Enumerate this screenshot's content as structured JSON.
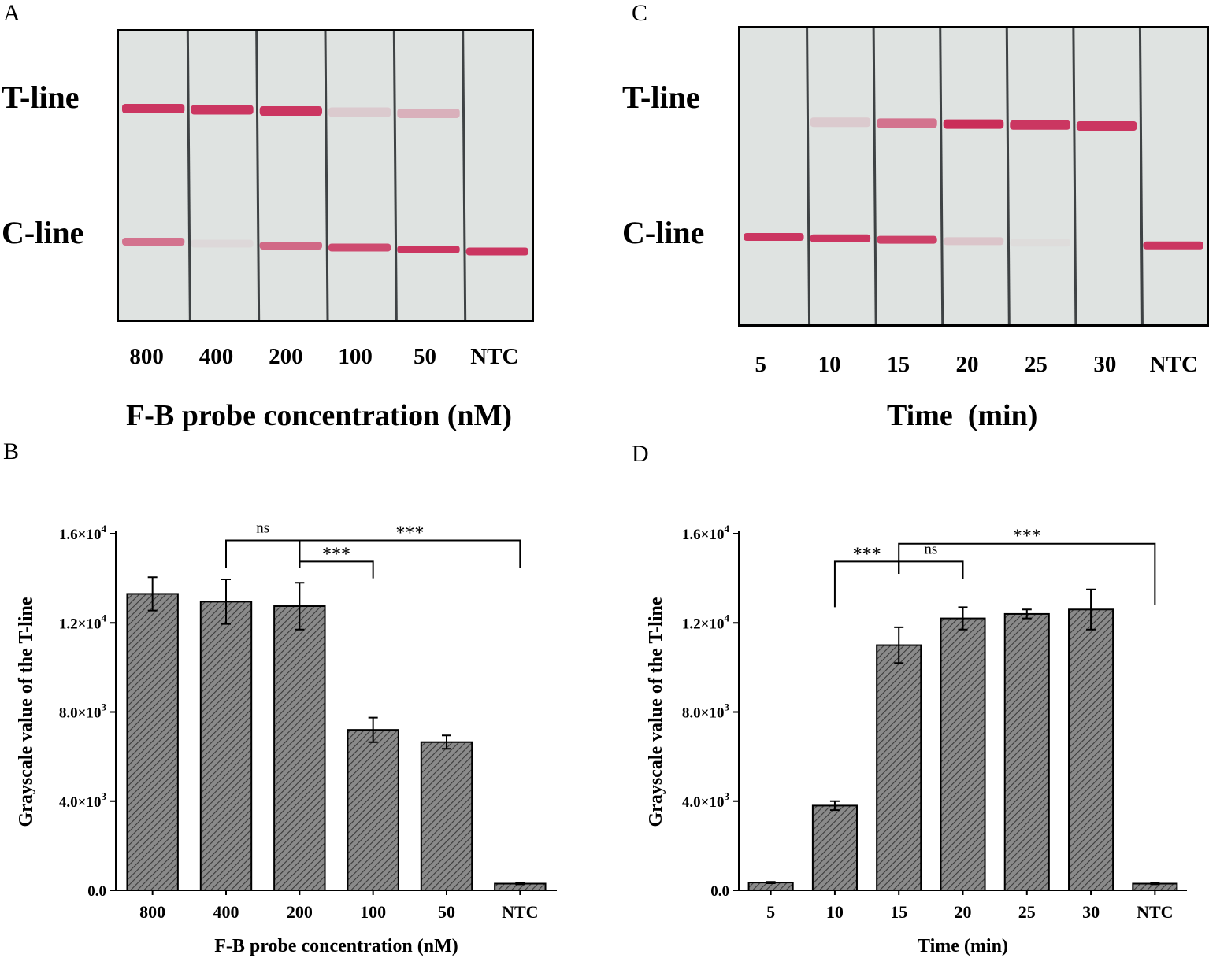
{
  "panels": {
    "A": {
      "letter": "A",
      "t_line_label": "T-line",
      "c_line_label": "C-line",
      "lanes": [
        {
          "label": "800",
          "t_intensity": 0.85,
          "c_intensity": 0.55
        },
        {
          "label": "400",
          "t_intensity": 0.85,
          "c_intensity": 0.05
        },
        {
          "label": "200",
          "t_intensity": 0.85,
          "c_intensity": 0.6
        },
        {
          "label": "100",
          "t_intensity": 0.12,
          "c_intensity": 0.75
        },
        {
          "label": "50",
          "t_intensity": 0.25,
          "c_intensity": 0.85
        },
        {
          "label": "NTC",
          "t_intensity": 0.0,
          "c_intensity": 0.85
        }
      ],
      "xlabel": "F-B probe concentration (nM)"
    },
    "C": {
      "letter": "C",
      "t_line_label": "T-line",
      "c_line_label": "C-line",
      "lanes": [
        {
          "label": "5",
          "t_intensity": 0.0,
          "c_intensity": 0.85
        },
        {
          "label": "10",
          "t_intensity": 0.12,
          "c_intensity": 0.85
        },
        {
          "label": "15",
          "t_intensity": 0.55,
          "c_intensity": 0.8
        },
        {
          "label": "20",
          "t_intensity": 0.9,
          "c_intensity": 0.15
        },
        {
          "label": "25",
          "t_intensity": 0.85,
          "c_intensity": 0.03
        },
        {
          "label": "30",
          "t_intensity": 0.85,
          "c_intensity": 0.0
        },
        {
          "label": "NTC",
          "t_intensity": 0.0,
          "c_intensity": 0.85
        }
      ],
      "xlabel": "Time  (min)"
    },
    "B": {
      "letter": "B"
    },
    "D": {
      "letter": "D"
    }
  },
  "colors": {
    "band": "#c8184a",
    "strip": "#dfe3e1",
    "bar_fill": "#8a8a8a",
    "hatch": "#3a3a3a"
  },
  "chart_data": [
    {
      "id": "B",
      "type": "bar",
      "categories": [
        "800",
        "400",
        "200",
        "100",
        "50",
        "NTC"
      ],
      "values": [
        13300,
        12950,
        12750,
        7200,
        6650,
        300
      ],
      "errors": [
        750,
        1000,
        1050,
        550,
        300,
        30
      ],
      "xlabel": "F-B probe concentration (nM)",
      "ylabel": "Grayscale value of the T-line",
      "ylim": [
        0,
        16000
      ],
      "yticks": [
        {
          "value": 0,
          "base": "0.0",
          "exp": ""
        },
        {
          "value": 4000,
          "base": "4.0×10",
          "exp": "3"
        },
        {
          "value": 8000,
          "base": "8.0×10",
          "exp": "3"
        },
        {
          "value": 12000,
          "base": "1.2×10",
          "exp": "4"
        },
        {
          "value": 16000,
          "base": "1.6×10",
          "exp": "4"
        }
      ],
      "brackets": [
        {
          "from": 1,
          "to": 2,
          "label": "ns",
          "level": 15700,
          "drop_from": 14450,
          "drop_to": 14450
        },
        {
          "from": 2,
          "to": 3,
          "label": "***",
          "level": 14750,
          "drop_from": 14450,
          "drop_to": 14000
        },
        {
          "from": 2,
          "to": 5,
          "label": "***",
          "level": 15700,
          "drop_from": 14450,
          "drop_to": 14450
        }
      ]
    },
    {
      "id": "D",
      "type": "bar",
      "categories": [
        "5",
        "10",
        "15",
        "20",
        "25",
        "30",
        "NTC"
      ],
      "values": [
        350,
        3800,
        11000,
        12200,
        12400,
        12600,
        300
      ],
      "errors": [
        30,
        200,
        800,
        500,
        200,
        900,
        30
      ],
      "xlabel": "Time (min)",
      "ylabel": "Grayscale value of the T-line",
      "ylim": [
        0,
        16000
      ],
      "yticks": [
        {
          "value": 0,
          "base": "0.0",
          "exp": ""
        },
        {
          "value": 4000,
          "base": "4.0×10",
          "exp": "3"
        },
        {
          "value": 8000,
          "base": "8.0×10",
          "exp": "3"
        },
        {
          "value": 12000,
          "base": "1.2×10",
          "exp": "4"
        },
        {
          "value": 16000,
          "base": "1.6×10",
          "exp": "4"
        }
      ],
      "brackets": [
        {
          "from": 1,
          "to": 2,
          "label": "***",
          "level": 14750,
          "drop_from": 12700,
          "drop_to": 14200
        },
        {
          "from": 2,
          "to": 3,
          "label": "ns",
          "level": 14750,
          "drop_from": 14200,
          "drop_to": 13950
        },
        {
          "from": 2,
          "to": 6,
          "label": "***",
          "level": 15550,
          "drop_from": 14200,
          "drop_to": 12800
        }
      ]
    }
  ]
}
